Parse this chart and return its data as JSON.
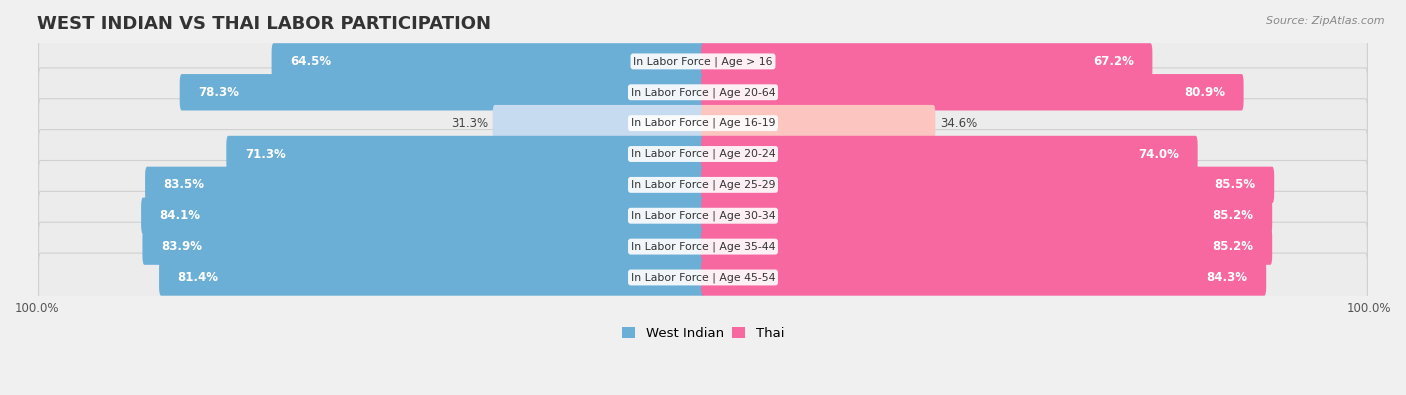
{
  "title": "WEST INDIAN VS THAI LABOR PARTICIPATION",
  "source": "Source: ZipAtlas.com",
  "categories": [
    "In Labor Force | Age > 16",
    "In Labor Force | Age 20-64",
    "In Labor Force | Age 16-19",
    "In Labor Force | Age 20-24",
    "In Labor Force | Age 25-29",
    "In Labor Force | Age 30-34",
    "In Labor Force | Age 35-44",
    "In Labor Force | Age 45-54"
  ],
  "west_indian": [
    64.5,
    78.3,
    31.3,
    71.3,
    83.5,
    84.1,
    83.9,
    81.4
  ],
  "thai": [
    67.2,
    80.9,
    34.6,
    74.0,
    85.5,
    85.2,
    85.2,
    84.3
  ],
  "west_indian_color_full": "#6baed6",
  "west_indian_color_light": "#c6dbef",
  "thai_color_full": "#f768a1",
  "thai_color_light": "#fcc5c0",
  "row_bg": "#e8e8e8",
  "row_outline": "#d5d5d5",
  "legend_west_indian": "West Indian",
  "legend_thai": "Thai",
  "max_value": 100.0,
  "title_fontsize": 13,
  "label_fontsize": 8.5,
  "tick_fontsize": 8.5
}
